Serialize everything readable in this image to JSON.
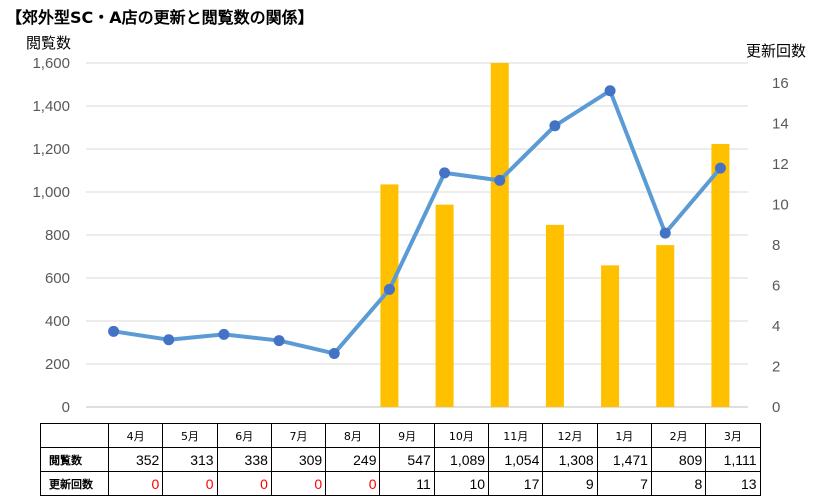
{
  "title": "【郊外型SC・A店の更新と閲覧数の関係】",
  "chart_data": {
    "type": "bar+line",
    "categories": [
      "4月",
      "5月",
      "6月",
      "7月",
      "8月",
      "9月",
      "10月",
      "11月",
      "12月",
      "1月",
      "2月",
      "3月"
    ],
    "series": [
      {
        "name": "閲覧数",
        "type": "line",
        "axis": "left",
        "values": [
          352,
          313,
          338,
          309,
          249,
          547,
          1089,
          1054,
          1308,
          1471,
          809,
          1111
        ]
      },
      {
        "name": "更新回数",
        "type": "bar",
        "axis": "right",
        "values": [
          0,
          0,
          0,
          0,
          0,
          11,
          10,
          17,
          9,
          7,
          8,
          13
        ]
      }
    ],
    "ylabel_left": "閲覧数",
    "ylabel_right": "更新回数",
    "ylim_left": [
      0,
      1600
    ],
    "ylim_right": [
      0,
      17
    ],
    "yticks_left": [
      "0",
      "200",
      "400",
      "600",
      "800",
      "1,000",
      "1,200",
      "1,400",
      "1,600"
    ],
    "yticks_right": [
      "0",
      "2",
      "4",
      "6",
      "8",
      "10",
      "12",
      "14",
      "16"
    ],
    "grid": true,
    "colors": {
      "bar": "#ffc000",
      "line": "#5b9bd5",
      "marker": "#4472c4",
      "zero_text": "#ff0000"
    }
  },
  "table": {
    "rows": [
      {
        "label": "閲覧数",
        "values": [
          "352",
          "313",
          "338",
          "309",
          "249",
          "547",
          "1,089",
          "1,054",
          "1,308",
          "1,471",
          "809",
          "1,111"
        ]
      },
      {
        "label": "更新回数",
        "values": [
          "0",
          "0",
          "0",
          "0",
          "0",
          "11",
          "10",
          "17",
          "9",
          "7",
          "8",
          "13"
        ]
      }
    ]
  }
}
